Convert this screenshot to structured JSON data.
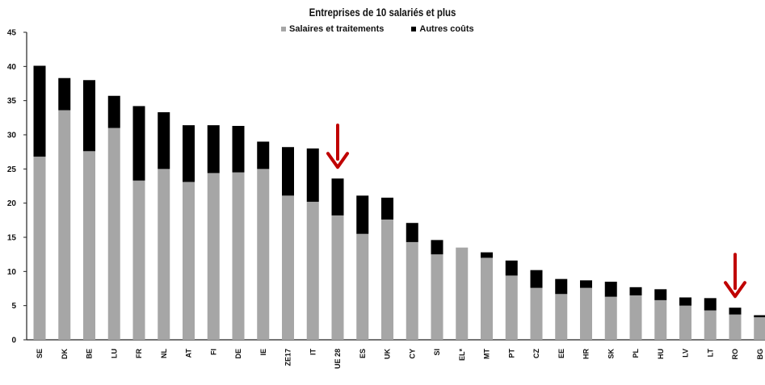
{
  "chart_data": {
    "type": "bar",
    "stacked": true,
    "title": "Entreprises de 10 salariés et plus",
    "categories": [
      "SE",
      "DK",
      "BE",
      "LU",
      "FR",
      "NL",
      "AT",
      "FI",
      "DE",
      "IE",
      "ZE17",
      "IT",
      "UE 28",
      "ES",
      "UK",
      "CY",
      "SI",
      "EL*",
      "MT",
      "PT",
      "CZ",
      "EE",
      "HR",
      "SK",
      "PL",
      "HU",
      "LV",
      "LT",
      "RO",
      "BG"
    ],
    "series": [
      {
        "name": "Salaires et traitements",
        "color": "#a6a6a6",
        "values": [
          26.8,
          33.6,
          27.6,
          31.0,
          23.3,
          25.0,
          23.1,
          24.4,
          24.5,
          25.0,
          21.1,
          20.2,
          18.2,
          15.5,
          17.6,
          14.3,
          12.5,
          13.5,
          12.0,
          9.4,
          7.6,
          6.7,
          7.6,
          6.3,
          6.5,
          5.8,
          5.0,
          4.3,
          3.7,
          3.3
        ]
      },
      {
        "name": "Autres coûts",
        "color": "#000000",
        "values": [
          13.3,
          4.7,
          10.4,
          4.7,
          10.9,
          8.3,
          8.3,
          7.0,
          6.8,
          4.0,
          7.1,
          7.8,
          5.4,
          5.6,
          3.2,
          2.8,
          2.1,
          0.0,
          0.8,
          2.2,
          2.6,
          2.2,
          1.1,
          2.2,
          1.2,
          1.6,
          1.2,
          1.8,
          1.0,
          0.3
        ]
      }
    ],
    "ylim": [
      0,
      45
    ],
    "yticks": [
      0,
      5,
      10,
      15,
      20,
      25,
      30,
      35,
      40,
      45
    ],
    "grid": false,
    "legend": "top-center",
    "annotations": [
      {
        "type": "arrow",
        "target": "UE 28",
        "color": "#c00000"
      },
      {
        "type": "arrow",
        "target": "RO",
        "color": "#c00000"
      }
    ]
  }
}
